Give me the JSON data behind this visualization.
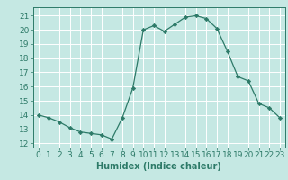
{
  "x": [
    0,
    1,
    2,
    3,
    4,
    5,
    6,
    7,
    8,
    9,
    10,
    11,
    12,
    13,
    14,
    15,
    16,
    17,
    18,
    19,
    20,
    21,
    22,
    23
  ],
  "y": [
    14.0,
    13.8,
    13.5,
    13.1,
    12.8,
    12.7,
    12.6,
    12.3,
    13.8,
    15.9,
    20.0,
    20.3,
    19.9,
    20.4,
    20.9,
    21.0,
    20.8,
    20.1,
    18.5,
    16.7,
    16.4,
    14.8,
    14.5,
    13.8
  ],
  "line_color": "#2d7a68",
  "marker": "D",
  "marker_size": 2.2,
  "bg_color": "#c5e8e3",
  "grid_color": "#ffffff",
  "tick_color": "#2d7a68",
  "xlabel": "Humidex (Indice chaleur)",
  "xlabel_fontsize": 7,
  "ylabel_ticks": [
    12,
    13,
    14,
    15,
    16,
    17,
    18,
    19,
    20,
    21
  ],
  "xlim": [
    -0.5,
    23.5
  ],
  "ylim": [
    11.7,
    21.6
  ],
  "xticks": [
    0,
    1,
    2,
    3,
    4,
    5,
    6,
    7,
    8,
    9,
    10,
    11,
    12,
    13,
    14,
    15,
    16,
    17,
    18,
    19,
    20,
    21,
    22,
    23
  ],
  "tick_fontsize": 6.5,
  "linewidth": 0.9
}
